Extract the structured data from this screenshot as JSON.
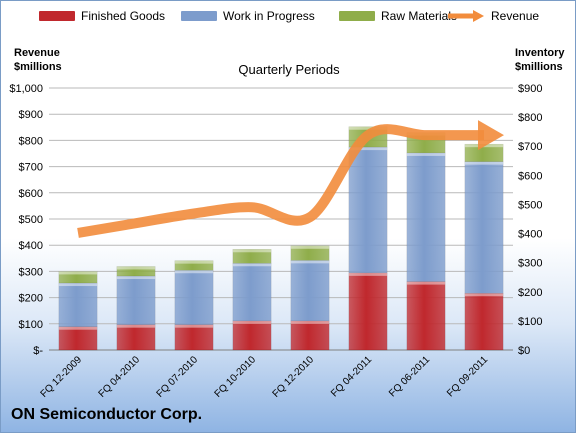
{
  "chart_data": {
    "type": "bar",
    "title": "Quarterly Periods",
    "company": "ON Semiconductor Corp.",
    "categories": [
      "FQ 12-2009",
      "FQ 04-2010",
      "FQ 07-2010",
      "FQ 10-2010",
      "FQ 12-2010",
      "FQ 04-2011",
      "FQ 06-2011",
      "FQ 09-2011"
    ],
    "series": [
      {
        "name": "Finished Goods",
        "kind": "stacked-bar",
        "axis": "right",
        "color": "#c0282d",
        "values": [
          80,
          87,
          87,
          100,
          100,
          265,
          235,
          195
        ]
      },
      {
        "name": "Work in Progress",
        "kind": "stacked-bar",
        "axis": "right",
        "color": "#7d9ccc",
        "values": [
          150,
          167,
          187,
          198,
          208,
          432,
          442,
          452
        ]
      },
      {
        "name": "Raw Materials",
        "kind": "stacked-bar",
        "axis": "right",
        "color": "#8fad4a",
        "values": [
          40,
          33,
          33,
          48,
          50,
          70,
          70,
          60
        ]
      },
      {
        "name": "Revenue",
        "kind": "line",
        "axis": "left",
        "color": "#f28c3c",
        "values": [
          447,
          484,
          521,
          545,
          507,
          820,
          820,
          820
        ]
      }
    ],
    "left_axis": {
      "label": "Revenue\n$millions",
      "ylim": [
        0,
        1000
      ],
      "ticks": [
        "$-",
        "$100",
        "$200",
        "$300",
        "$400",
        "$500",
        "$600",
        "$700",
        "$800",
        "$900",
        "$1,000"
      ]
    },
    "right_axis": {
      "label": "Inventory\n$millions",
      "ylim": [
        0,
        900
      ],
      "ticks": [
        "$0",
        "$100",
        "$200",
        "$300",
        "$400",
        "$500",
        "$600",
        "$700",
        "$800",
        "$900"
      ]
    },
    "grid": true,
    "legend": "top"
  }
}
